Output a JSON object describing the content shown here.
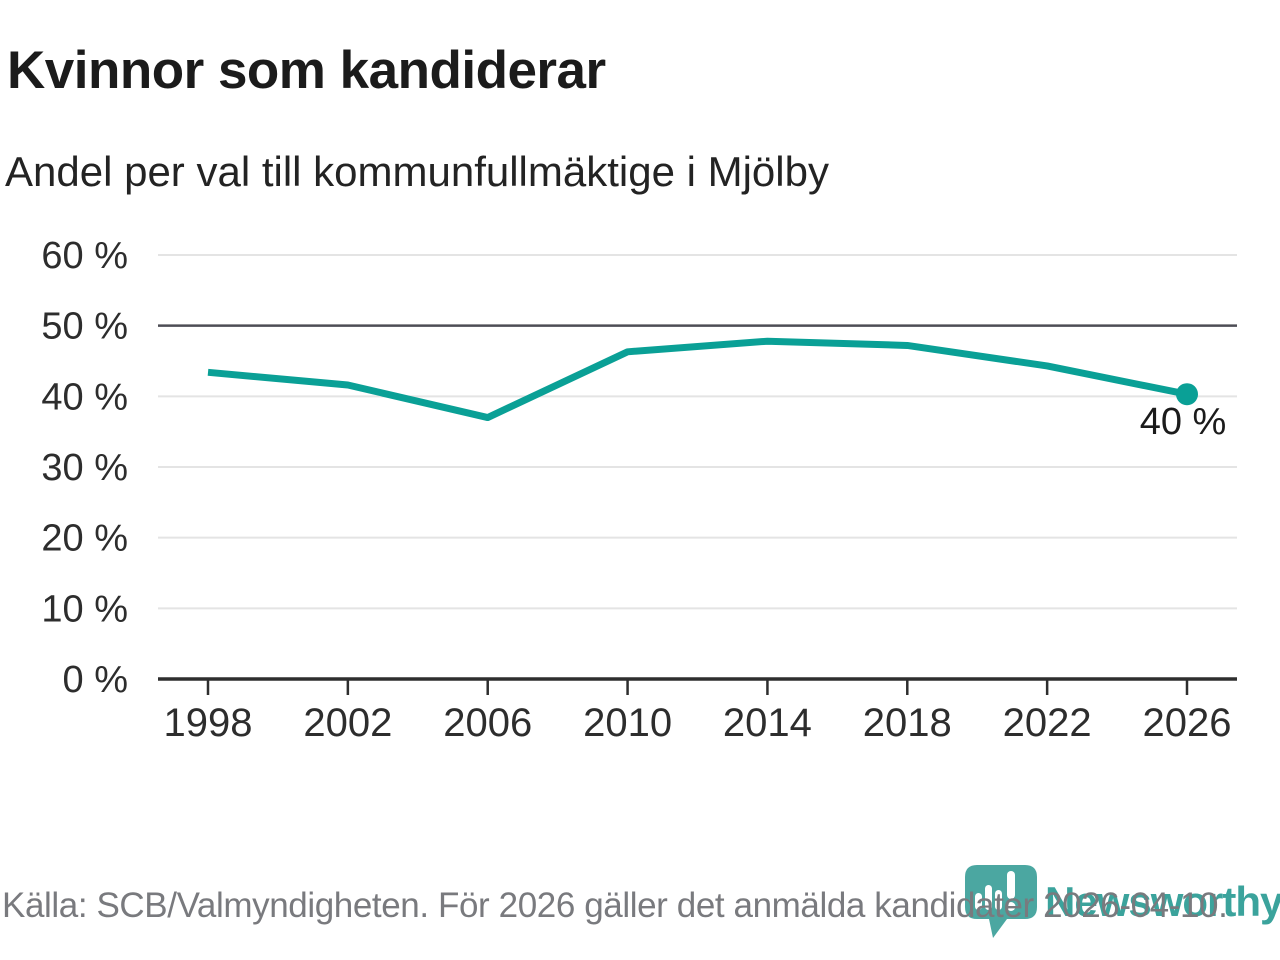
{
  "header": {
    "title": "Kvinnor som kandiderar",
    "subtitle": "Andel per val till kommunfullmäktige i Mjölby"
  },
  "chart_data": {
    "type": "line",
    "title": "Kvinnor som kandiderar",
    "subtitle": "Andel per val till kommunfullmäktige i Mjölby",
    "x": [
      1998,
      2002,
      2006,
      2010,
      2014,
      2018,
      2022,
      2026
    ],
    "series": [
      {
        "name": "Andel kvinnor som kandiderar",
        "values": [
          43.4,
          41.6,
          37.0,
          46.3,
          47.8,
          47.2,
          44.3,
          40.3
        ]
      }
    ],
    "ylim": [
      0,
      60
    ],
    "yticks": [
      0,
      10,
      20,
      30,
      40,
      50,
      60
    ],
    "ytick_suffix": " %",
    "emphasized_gridline": 50,
    "grid": true,
    "legend_position": "none",
    "end_point_label": "40 %"
  },
  "footer": {
    "source": "Källa: SCB/Valmyndigheten. För 2026 gäller det anmälda kandidater 2026-04-10."
  },
  "logo": {
    "brand": "Newsworthy",
    "pin_icon": "speech-bubble-bar-chart-pin"
  },
  "colors": {
    "line": "#0aa096",
    "grid_light": "#e4e4e4",
    "grid_dark": "#4d4d55",
    "axis": "#2e2e2e",
    "tick_label": "#2d2d2d",
    "annotation": "#1b1b1b",
    "logo_teal": "#3ba39c",
    "pin_teal": "#4ba7a1",
    "source_gray": "#797a7e"
  }
}
